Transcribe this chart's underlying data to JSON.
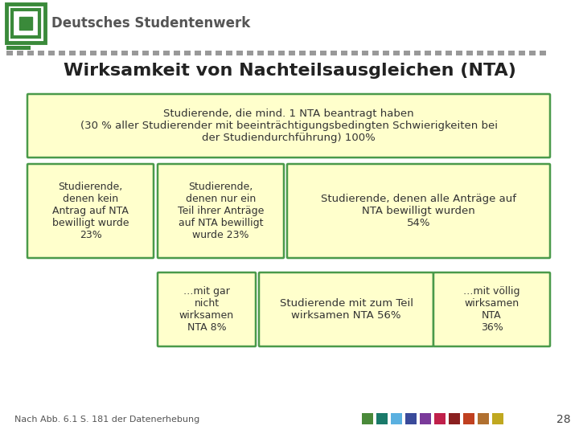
{
  "title": "Wirksamkeit von Nachteilsausgleichen (NTA)",
  "bg_color": "#ffffff",
  "box_fill": "#ffffcc",
  "box_edge": "#4a9a4a",
  "header_text": "Studierende, die mind. 1 NTA beantragt haben\n(30 % aller Studierender mit beeinträchtigungsbedingten Schwierigkeiten bei\nder Studiendurchführung) 100%",
  "box1_text": "Studierende,\ndenen kein\nAntrag auf NTA\nbewilligt wurde\n23%",
  "box2_text": "Studierende,\ndenen nur ein\nTeil ihrer Anträge\nauf NTA bewilligt\nwurde 23%",
  "box3_text": "Studierende, denen alle Anträge auf\nNTA bewilligt wurden\n54%",
  "box4_text": "…mit gar\nnicht\nwirksamen\nNTA 8%",
  "box5_text": "Studierende mit zum Teil\nwirksamen NTA 56%",
  "box6_text": "…mit völlig\nwirksamen\nNTA\n36%",
  "footer_text": "Nach Abb. 6.1 S. 181 der Datenerhebung",
  "page_number": "28",
  "dot_colors": [
    "#4a8a3a",
    "#1a7a6a",
    "#5ab0e0",
    "#3a4a9a",
    "#7a3a9a",
    "#c0204a",
    "#8a2020",
    "#c04020",
    "#b07030",
    "#c0a820"
  ],
  "stripe_color": "#999999",
  "title_color": "#222222",
  "logo_green": "#3a8a3a",
  "text_color": "#333333"
}
